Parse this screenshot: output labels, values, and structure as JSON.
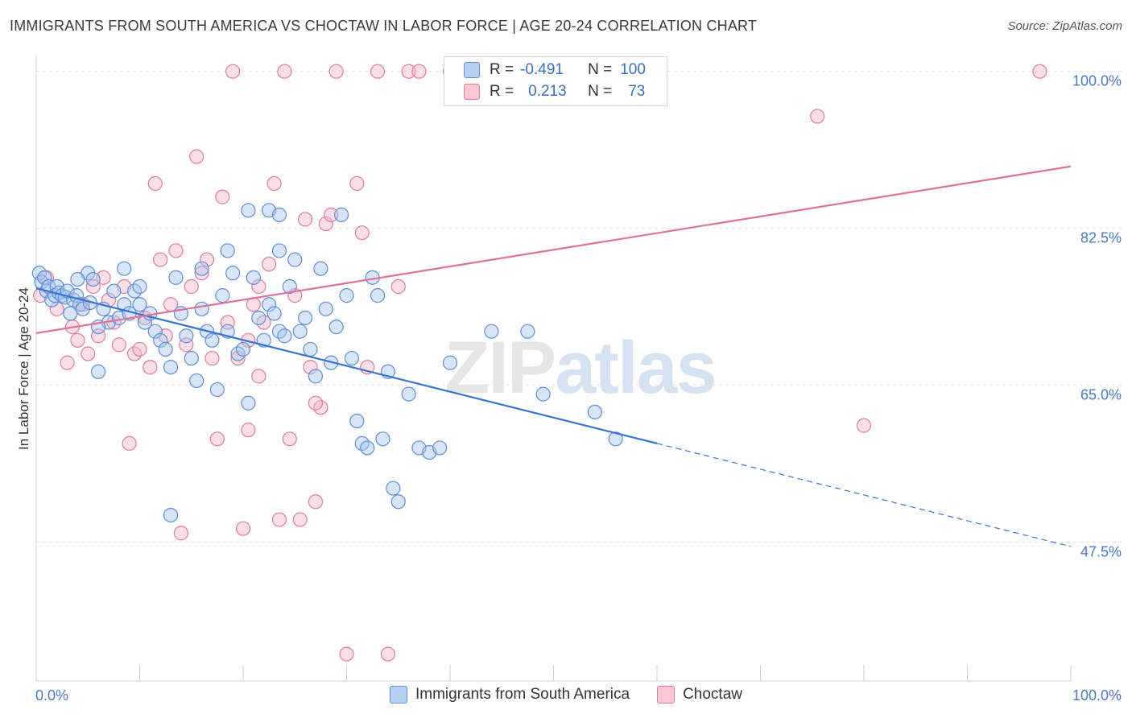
{
  "title": "IMMIGRANTS FROM SOUTH AMERICA VS CHOCTAW IN LABOR FORCE | AGE 20-24 CORRELATION CHART",
  "source": "Source: ZipAtlas.com",
  "watermark": {
    "zip": "ZIP",
    "atlas": "atlas"
  },
  "stats": {
    "r_label": "R =",
    "n_label": "N =",
    "blue": {
      "r": "-0.491",
      "n": "100"
    },
    "pink": {
      "r": "0.213",
      "n": "73"
    }
  },
  "colors": {
    "blue_fill": "#a9c6ee",
    "blue_stroke": "#5d8fd8",
    "blue_line": "#3a74d2",
    "pink_fill": "#f6b9cc",
    "pink_stroke": "#e07b9c",
    "pink_line": "#e0709a",
    "tick_label": "#4a78c8",
    "grid": "#e3e3e3"
  },
  "chart_data": {
    "type": "scatter",
    "title": "IMMIGRANTS FROM SOUTH AMERICA VS CHOCTAW IN LABOR FORCE | AGE 20-24 CORRELATION CHART",
    "xlabel": "",
    "ylabel": "In Labor Force | Age 20-24",
    "xlim": [
      0,
      100
    ],
    "ylim": [
      32,
      101.5
    ],
    "x_tick_labels": [
      "0.0%",
      "100.0%"
    ],
    "y_ticks": [
      47.5,
      65.0,
      82.5,
      100.0
    ],
    "y_tick_labels": [
      "47.5%",
      "65.0%",
      "82.5%",
      "100.0%"
    ],
    "grid": true,
    "legend_position": "bottom",
    "series": [
      {
        "name": "Immigrants from South America",
        "points": [
          [
            0.3,
            77.5
          ],
          [
            0.5,
            76.5
          ],
          [
            0.8,
            77
          ],
          [
            1.0,
            75.5
          ],
          [
            1.2,
            76
          ],
          [
            1.5,
            74.5
          ],
          [
            1.8,
            75
          ],
          [
            2.0,
            76
          ],
          [
            2.2,
            75.3
          ],
          [
            2.5,
            75
          ],
          [
            2.8,
            74.8
          ],
          [
            3.0,
            75.5
          ],
          [
            3.3,
            73
          ],
          [
            3.6,
            74.5
          ],
          [
            3.9,
            75
          ],
          [
            4.2,
            74
          ],
          [
            4.5,
            73.5
          ],
          [
            5.0,
            77.5
          ],
          [
            5.5,
            76.8
          ],
          [
            6.0,
            66.5
          ],
          [
            6.5,
            73.5
          ],
          [
            7.0,
            72
          ],
          [
            7.5,
            75.5
          ],
          [
            8.0,
            72.5
          ],
          [
            8.5,
            74
          ],
          [
            9.0,
            73
          ],
          [
            9.5,
            75.5
          ],
          [
            10.0,
            74
          ],
          [
            10.5,
            72
          ],
          [
            11.0,
            73
          ],
          [
            11.5,
            71
          ],
          [
            12.0,
            70
          ],
          [
            12.5,
            69
          ],
          [
            13.0,
            67
          ],
          [
            13.5,
            77
          ],
          [
            14.0,
            73
          ],
          [
            14.5,
            70.5
          ],
          [
            15.0,
            68
          ],
          [
            15.5,
            65.5
          ],
          [
            16.0,
            78
          ],
          [
            16.5,
            71
          ],
          [
            17.0,
            70
          ],
          [
            17.5,
            64.5
          ],
          [
            18.0,
            75
          ],
          [
            18.5,
            71
          ],
          [
            19.0,
            77.5
          ],
          [
            19.5,
            68.5
          ],
          [
            20.0,
            69
          ],
          [
            20.5,
            63
          ],
          [
            21.0,
            77
          ],
          [
            21.5,
            72.5
          ],
          [
            22.0,
            70
          ],
          [
            22.5,
            74
          ],
          [
            23.0,
            73
          ],
          [
            23.5,
            71
          ],
          [
            24.0,
            70.5
          ],
          [
            24.5,
            76
          ],
          [
            25.0,
            79
          ],
          [
            25.5,
            71
          ],
          [
            26.0,
            72.5
          ],
          [
            26.5,
            69
          ],
          [
            27.0,
            66
          ],
          [
            27.5,
            78
          ],
          [
            28.0,
            73.5
          ],
          [
            28.5,
            67.5
          ],
          [
            29.0,
            71.5
          ],
          [
            29.5,
            84
          ],
          [
            30.0,
            75
          ],
          [
            30.5,
            68
          ],
          [
            31.0,
            61
          ],
          [
            31.5,
            58.5
          ],
          [
            32.0,
            58
          ],
          [
            32.5,
            77
          ],
          [
            33.0,
            75
          ],
          [
            33.5,
            59
          ],
          [
            34.0,
            66.5
          ],
          [
            34.5,
            53.5
          ],
          [
            35.0,
            52
          ],
          [
            36.0,
            64
          ],
          [
            37.0,
            58
          ],
          [
            38.0,
            57.5
          ],
          [
            39.0,
            58
          ],
          [
            40.0,
            67.5
          ],
          [
            20.5,
            84.5
          ],
          [
            22.5,
            84.5
          ],
          [
            23.5,
            84
          ],
          [
            16.0,
            73.5
          ],
          [
            18.5,
            80
          ],
          [
            13.0,
            50.5
          ],
          [
            44.0,
            71
          ],
          [
            47.5,
            71
          ],
          [
            49.0,
            64
          ],
          [
            54.0,
            62
          ],
          [
            56.0,
            59
          ],
          [
            23.5,
            80
          ],
          [
            8.5,
            78
          ],
          [
            6.0,
            71.5
          ],
          [
            4.0,
            76.8
          ],
          [
            10.0,
            76
          ],
          [
            5.2,
            74.2
          ]
        ],
        "trend": {
          "x": [
            0,
            60
          ],
          "y": [
            75.8,
            58.5
          ],
          "dashed_extension": {
            "x": [
              60,
              100
            ],
            "y": [
              58.5,
              47.0
            ]
          }
        }
      },
      {
        "name": "Choctaw",
        "points": [
          [
            0.4,
            75
          ],
          [
            1.0,
            77
          ],
          [
            2.0,
            73.5
          ],
          [
            3.0,
            67.5
          ],
          [
            3.5,
            71.5
          ],
          [
            4.0,
            70
          ],
          [
            4.5,
            74
          ],
          [
            5.0,
            68.5
          ],
          [
            5.5,
            76
          ],
          [
            6.0,
            70.5
          ],
          [
            6.5,
            77
          ],
          [
            7.0,
            74.5
          ],
          [
            7.5,
            72
          ],
          [
            8.0,
            69.5
          ],
          [
            8.5,
            76
          ],
          [
            9.0,
            58.5
          ],
          [
            9.5,
            68.5
          ],
          [
            10.0,
            69
          ],
          [
            10.5,
            72.5
          ],
          [
            11.0,
            67
          ],
          [
            11.5,
            87.5
          ],
          [
            12.0,
            79
          ],
          [
            12.5,
            70.5
          ],
          [
            13.0,
            74
          ],
          [
            13.5,
            80
          ],
          [
            14.0,
            48.5
          ],
          [
            14.5,
            69.5
          ],
          [
            15.0,
            76
          ],
          [
            15.5,
            90.5
          ],
          [
            16.0,
            77.5
          ],
          [
            16.5,
            79
          ],
          [
            17.0,
            68
          ],
          [
            17.5,
            59
          ],
          [
            18.0,
            86
          ],
          [
            18.5,
            72
          ],
          [
            19.0,
            100
          ],
          [
            19.5,
            68
          ],
          [
            20.0,
            49
          ],
          [
            20.5,
            70
          ],
          [
            21.0,
            74
          ],
          [
            21.5,
            76
          ],
          [
            22.0,
            72
          ],
          [
            22.5,
            78.5
          ],
          [
            23.0,
            87.5
          ],
          [
            23.5,
            50
          ],
          [
            24.0,
            100
          ],
          [
            24.5,
            59
          ],
          [
            25.0,
            75
          ],
          [
            25.5,
            50
          ],
          [
            26.0,
            83.5
          ],
          [
            26.5,
            67
          ],
          [
            27.0,
            52
          ],
          [
            27.5,
            62.5
          ],
          [
            28.0,
            83
          ],
          [
            28.5,
            84
          ],
          [
            29.0,
            100
          ],
          [
            30.0,
            35
          ],
          [
            31.0,
            87.5
          ],
          [
            31.5,
            82
          ],
          [
            32.0,
            67
          ],
          [
            33.0,
            100
          ],
          [
            34.0,
            35
          ],
          [
            35.0,
            76
          ],
          [
            36.0,
            100
          ],
          [
            37.0,
            100
          ],
          [
            40.0,
            100
          ],
          [
            41.0,
            100
          ],
          [
            75.5,
            95
          ],
          [
            80.0,
            60.5
          ],
          [
            97.0,
            100
          ],
          [
            20.5,
            60
          ],
          [
            21.5,
            66
          ],
          [
            27.0,
            63
          ]
        ],
        "trend": {
          "x": [
            0,
            100
          ],
          "y": [
            70.8,
            89.4
          ]
        }
      }
    ]
  }
}
